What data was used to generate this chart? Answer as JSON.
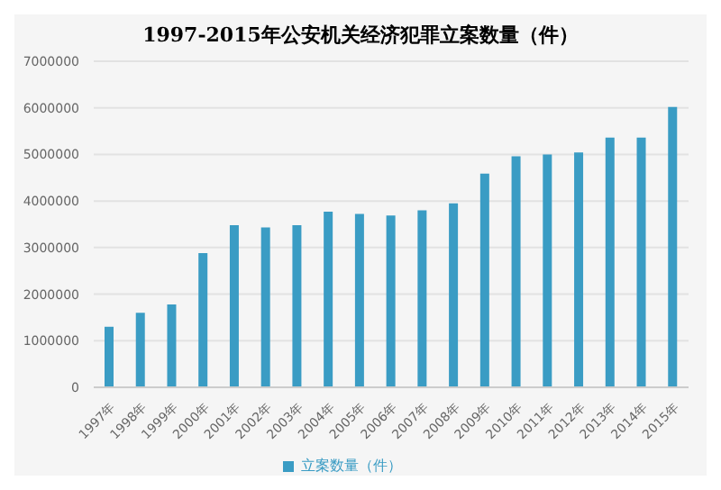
{
  "chart_data": {
    "type": "bar",
    "title": "1997-2015年公安机关经济犯罪立案数量（件）",
    "categories": [
      "1997年",
      "1998年",
      "1999年",
      "2000年",
      "2001年",
      "2002年",
      "2003年",
      "2004年",
      "2005年",
      "2006年",
      "2007年",
      "2008年",
      "2009年",
      "2010年",
      "2011年",
      "2012年",
      "2013年",
      "2014年",
      "2015年"
    ],
    "series": [
      {
        "name": "立案数量（件）",
        "color": "#3a9cc4",
        "values": [
          1300000,
          1600000,
          1780000,
          2880000,
          3480000,
          3430000,
          3480000,
          3770000,
          3720000,
          3690000,
          3800000,
          3950000,
          4590000,
          4960000,
          5000000,
          5040000,
          5360000,
          5360000,
          6020000
        ]
      }
    ],
    "ylim": [
      0,
      7000000
    ],
    "yticks": [
      0,
      1000000,
      2000000,
      3000000,
      4000000,
      5000000,
      6000000,
      7000000
    ],
    "grid": "y",
    "legend": "bottom"
  }
}
